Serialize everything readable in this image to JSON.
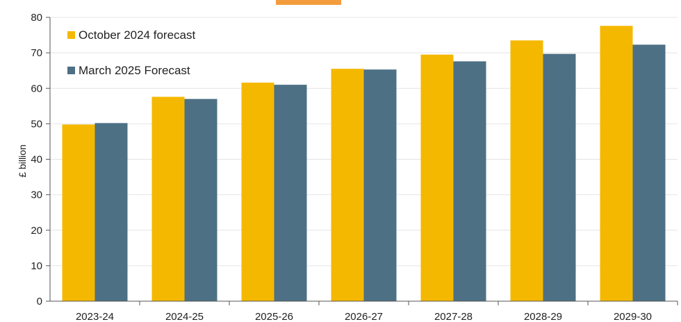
{
  "chart_data": {
    "type": "bar",
    "categories": [
      "2023-24",
      "2024-25",
      "2025-26",
      "2026-27",
      "2027-28",
      "2028-29",
      "2029-30"
    ],
    "series": [
      {
        "name": "October 2024 forecast",
        "color": "#F5B800",
        "values": [
          49.8,
          57.6,
          61.6,
          65.5,
          69.5,
          73.5,
          77.6
        ]
      },
      {
        "name": "March 2025 Forecast",
        "color": "#4D7085",
        "values": [
          50.2,
          57.0,
          61.0,
          65.3,
          67.6,
          69.7,
          72.3
        ]
      }
    ],
    "ylabel": "£ billion",
    "ylim": [
      0,
      80
    ],
    "yticks": [
      0,
      10,
      20,
      30,
      40,
      50,
      60,
      70,
      80
    ],
    "grid": true,
    "legend_position": "top-left"
  }
}
